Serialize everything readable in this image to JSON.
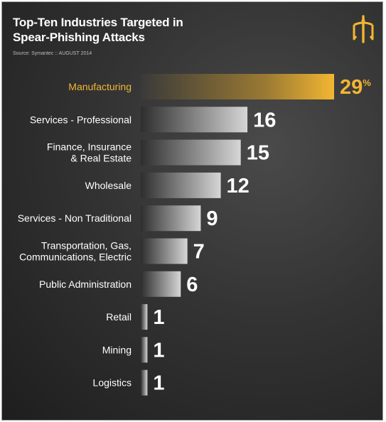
{
  "header": {
    "title_line1": "Top-Ten Industries Targeted in",
    "title_line2": "Spear-Phishing Attacks",
    "source": "Source: Symantec :: AUGUST 2014"
  },
  "logo_icon": "trident-icon",
  "colors": {
    "accent": "#f2b632",
    "bar": "#9a9a9a",
    "text": "#ffffff"
  },
  "chart_data": {
    "type": "bar",
    "orientation": "horizontal",
    "title": "Top-Ten Industries Targeted in Spear-Phishing Attacks",
    "unit": "%",
    "categories": [
      [
        "Manufacturing"
      ],
      [
        "Services - Professional"
      ],
      [
        "Finance, Insurance",
        "& Real Estate"
      ],
      [
        "Wholesale"
      ],
      [
        "Services - Non Traditional"
      ],
      [
        "Transportation, Gas,",
        "Communications, Electric"
      ],
      [
        "Public Administration"
      ],
      [
        "Retail"
      ],
      [
        "Mining"
      ],
      [
        "Logistics"
      ]
    ],
    "values": [
      29,
      16,
      15,
      12,
      9,
      7,
      6,
      1,
      1,
      1
    ],
    "highlight_index": 0,
    "xlim": [
      0,
      29
    ]
  }
}
